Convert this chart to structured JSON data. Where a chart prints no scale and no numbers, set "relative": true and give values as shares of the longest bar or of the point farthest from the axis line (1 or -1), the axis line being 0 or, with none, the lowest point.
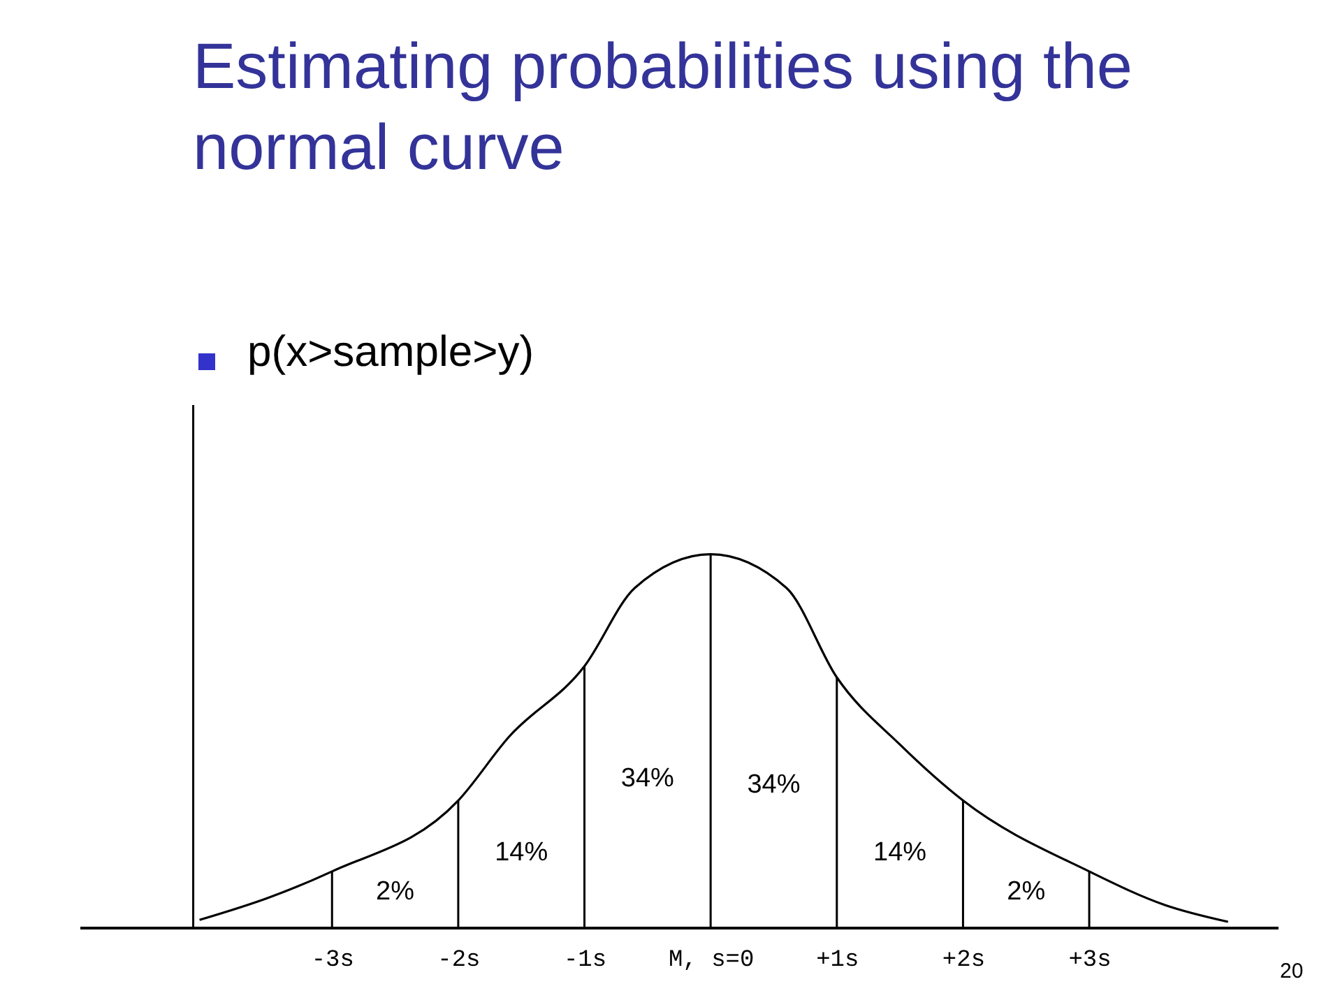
{
  "chart_data": {
    "type": "line",
    "title": "Estimating probabilities using the normal curve",
    "subtitle": "p(x>sample>y)",
    "relative": true,
    "color": "#000000",
    "marker": "none",
    "grid": false,
    "x": [
      -4.05,
      -3.5,
      -3,
      -2,
      -1.6,
      -1,
      -0.6,
      0,
      0.6,
      1,
      1.5,
      2,
      3,
      3.6,
      4.1
    ],
    "values": [
      0.02,
      0.08,
      0.15,
      0.34,
      0.51,
      0.7,
      0.91,
      1,
      0.91,
      0.67,
      0.49,
      0.34,
      0.15,
      0.06,
      0.015
    ],
    "xlim": [
      -5,
      4.5
    ],
    "xticks": [
      {
        "value": -3,
        "label": "-3s"
      },
      {
        "value": -2,
        "label": "-2s"
      },
      {
        "value": -1,
        "label": "-1s"
      },
      {
        "value": 0,
        "label": "M, s=0"
      },
      {
        "value": 1,
        "label": "+1s"
      },
      {
        "value": 2,
        "label": "+2s"
      },
      {
        "value": 3,
        "label": "+3s"
      }
    ],
    "ref_lines": [
      {
        "axis": "x",
        "value": -4.1
      },
      {
        "axis": "x",
        "value": -3
      },
      {
        "axis": "x",
        "value": -2
      },
      {
        "axis": "x",
        "value": -1
      },
      {
        "axis": "x",
        "value": 0
      },
      {
        "axis": "x",
        "value": 1
      },
      {
        "axis": "x",
        "value": 2
      },
      {
        "axis": "x",
        "value": 3
      }
    ],
    "annotations": [
      "2%",
      "14%",
      "34%",
      "34%",
      "14%",
      "2%",
      "20"
    ]
  }
}
